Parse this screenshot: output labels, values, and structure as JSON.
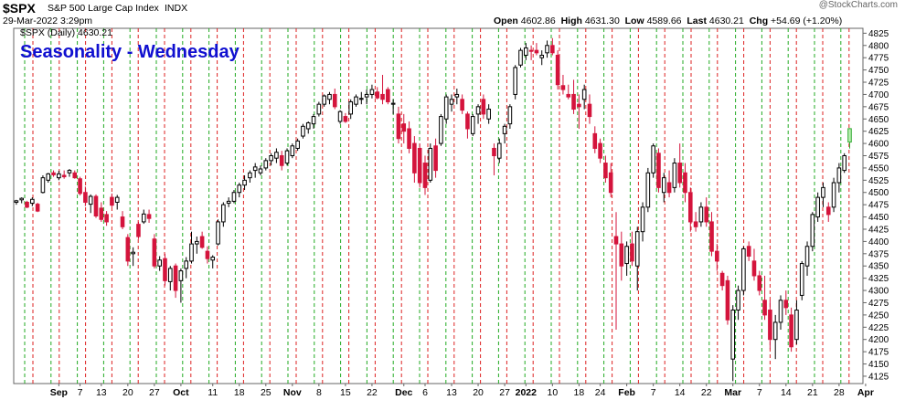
{
  "header": {
    "symbol": "$SPX",
    "name": "S&P 500 Large Cap Index",
    "exchange": "INDX",
    "datetime": "29-Mar-2022 3:29pm",
    "open_label": "Open",
    "open": "4602.86",
    "high_label": "High",
    "high": "4631.30",
    "low_label": "Low",
    "low": "4589.66",
    "last_label": "Last",
    "last": "4630.21",
    "chg_label": "Chg",
    "chg": "+54.69 (+1.20%)",
    "watermark": "@StockCharts.com",
    "series_label": "$SPX (Daily) 4630.21"
  },
  "overlay_title": "Seasonality - Wednesday",
  "chart_data": {
    "type": "candlestick",
    "ylim": [
      4110,
      4835
    ],
    "y_ticks": [
      4125,
      4150,
      4175,
      4200,
      4225,
      4250,
      4275,
      4300,
      4325,
      4350,
      4375,
      4400,
      4425,
      4450,
      4475,
      4500,
      4525,
      4550,
      4575,
      4600,
      4625,
      4650,
      4675,
      4700,
      4725,
      4750,
      4775,
      4800,
      4825
    ],
    "x_tick_labels": [
      {
        "label": "Sep",
        "i": 8,
        "bold": true
      },
      {
        "label": "7",
        "i": 12
      },
      {
        "label": "13",
        "i": 16
      },
      {
        "label": "20",
        "i": 21
      },
      {
        "label": "27",
        "i": 26
      },
      {
        "label": "Oct",
        "i": 31,
        "bold": true
      },
      {
        "label": "11",
        "i": 37
      },
      {
        "label": "18",
        "i": 42
      },
      {
        "label": "25",
        "i": 47
      },
      {
        "label": "Nov",
        "i": 52,
        "bold": true
      },
      {
        "label": "8",
        "i": 57
      },
      {
        "label": "15",
        "i": 62
      },
      {
        "label": "22",
        "i": 67
      },
      {
        "label": "Dec",
        "i": 73,
        "bold": true
      },
      {
        "label": "6",
        "i": 77
      },
      {
        "label": "13",
        "i": 82
      },
      {
        "label": "20",
        "i": 87
      },
      {
        "label": "27",
        "i": 92
      },
      {
        "label": "2022",
        "i": 96,
        "bold": true
      },
      {
        "label": "10",
        "i": 101
      },
      {
        "label": "18",
        "i": 106
      },
      {
        "label": "24",
        "i": 110
      },
      {
        "label": "Feb",
        "i": 115,
        "bold": true
      },
      {
        "label": "7",
        "i": 120
      },
      {
        "label": "14",
        "i": 125
      },
      {
        "label": "22",
        "i": 130
      },
      {
        "label": "Mar",
        "i": 135,
        "bold": true
      },
      {
        "label": "7",
        "i": 140
      },
      {
        "label": "14",
        "i": 145
      },
      {
        "label": "21",
        "i": 150
      },
      {
        "label": "28",
        "i": 155
      },
      {
        "label": "Apr",
        "i": 160,
        "bold": true
      }
    ],
    "weekday_line_colors": {
      "monday": "#22aa22",
      "wednesday": "#dd2222"
    },
    "candles": [
      [
        4480,
        4485,
        4475,
        4483
      ],
      [
        4485,
        4490,
        4478,
        4488
      ],
      [
        4480,
        4483,
        4468,
        4470
      ],
      [
        4478,
        4490,
        4472,
        4486
      ],
      [
        4476,
        4479,
        4460,
        4462
      ],
      [
        4500,
        4535,
        4498,
        4530
      ],
      [
        4525,
        4540,
        4520,
        4538
      ],
      [
        4540,
        4545,
        4532,
        4536
      ],
      [
        4530,
        4544,
        4525,
        4538
      ],
      [
        4535,
        4545,
        4528,
        4532
      ],
      [
        4540,
        4548,
        4532,
        4545
      ],
      [
        4540,
        4545,
        4528,
        4530
      ],
      [
        4528,
        4532,
        4494,
        4498
      ],
      [
        4500,
        4512,
        4472,
        4480
      ],
      [
        4476,
        4496,
        4458,
        4492
      ],
      [
        4492,
        4496,
        4448,
        4452
      ],
      [
        4468,
        4480,
        4440,
        4445
      ],
      [
        4455,
        4462,
        4432,
        4440
      ],
      [
        4490,
        4498,
        4470,
        4474
      ],
      [
        4480,
        4495,
        4465,
        4490
      ],
      [
        4450,
        4462,
        4425,
        4430
      ],
      [
        4408,
        4415,
        4350,
        4360
      ],
      [
        4375,
        4388,
        4350,
        4378
      ],
      [
        4435,
        4440,
        4405,
        4410
      ],
      [
        4440,
        4465,
        4436,
        4456
      ],
      [
        4455,
        4465,
        4438,
        4447
      ],
      [
        4405,
        4415,
        4345,
        4350
      ],
      [
        4350,
        4370,
        4340,
        4362
      ],
      [
        4365,
        4375,
        4310,
        4320
      ],
      [
        4318,
        4350,
        4300,
        4345
      ],
      [
        4350,
        4355,
        4285,
        4300
      ],
      [
        4320,
        4345,
        4275,
        4340
      ],
      [
        4345,
        4368,
        4325,
        4360
      ],
      [
        4360,
        4420,
        4355,
        4395
      ],
      [
        4395,
        4410,
        4375,
        4400
      ],
      [
        4410,
        4420,
        4385,
        4388
      ],
      [
        4380,
        4390,
        4355,
        4365
      ],
      [
        4362,
        4372,
        4345,
        4368
      ],
      [
        4395,
        4445,
        4392,
        4440
      ],
      [
        4440,
        4480,
        4430,
        4475
      ],
      [
        4478,
        4490,
        4470,
        4482
      ],
      [
        4482,
        4505,
        4478,
        4500
      ],
      [
        4500,
        4520,
        4490,
        4515
      ],
      [
        4515,
        4535,
        4505,
        4525
      ],
      [
        4530,
        4545,
        4520,
        4540
      ],
      [
        4545,
        4560,
        4530,
        4552
      ],
      [
        4540,
        4555,
        4535,
        4548
      ],
      [
        4550,
        4570,
        4545,
        4565
      ],
      [
        4565,
        4580,
        4555,
        4575
      ],
      [
        4570,
        4590,
        4560,
        4582
      ],
      [
        4575,
        4585,
        4545,
        4555
      ],
      [
        4560,
        4590,
        4555,
        4585
      ],
      [
        4575,
        4600,
        4570,
        4595
      ],
      [
        4590,
        4610,
        4585,
        4605
      ],
      [
        4615,
        4640,
        4610,
        4635
      ],
      [
        4630,
        4645,
        4620,
        4642
      ],
      [
        4640,
        4660,
        4630,
        4655
      ],
      [
        4660,
        4685,
        4655,
        4680
      ],
      [
        4680,
        4700,
        4675,
        4697
      ],
      [
        4690,
        4705,
        4680,
        4700
      ],
      [
        4700,
        4712,
        4670,
        4675
      ],
      [
        4645,
        4668,
        4640,
        4665
      ],
      [
        4655,
        4662,
        4642,
        4645
      ],
      [
        4660,
        4690,
        4650,
        4685
      ],
      [
        4680,
        4700,
        4675,
        4695
      ],
      [
        4690,
        4705,
        4680,
        4692
      ],
      [
        4695,
        4710,
        4680,
        4700
      ],
      [
        4700,
        4720,
        4692,
        4710
      ],
      [
        4705,
        4715,
        4690,
        4693
      ],
      [
        4700,
        4740,
        4680,
        4690
      ],
      [
        4710,
        4715,
        4680,
        4685
      ],
      [
        4680,
        4690,
        4660,
        4682
      ],
      [
        4660,
        4675,
        4600,
        4610
      ],
      [
        4640,
        4660,
        4600,
        4625
      ],
      [
        4630,
        4645,
        4580,
        4590
      ],
      [
        4600,
        4615,
        4520,
        4540
      ],
      [
        4590,
        4600,
        4510,
        4520
      ],
      [
        4560,
        4575,
        4495,
        4510
      ],
      [
        4525,
        4600,
        4520,
        4590
      ],
      [
        4595,
        4610,
        4530,
        4545
      ],
      [
        4600,
        4660,
        4595,
        4655
      ],
      [
        4650,
        4700,
        4640,
        4695
      ],
      [
        4680,
        4700,
        4665,
        4690
      ],
      [
        4695,
        4712,
        4680,
        4700
      ],
      [
        4690,
        4700,
        4660,
        4668
      ],
      [
        4660,
        4665,
        4610,
        4630
      ],
      [
        4620,
        4660,
        4615,
        4655
      ],
      [
        4660,
        4680,
        4640,
        4675
      ],
      [
        4690,
        4700,
        4650,
        4660
      ],
      [
        4650,
        4680,
        4640,
        4670
      ],
      [
        4590,
        4600,
        4535,
        4575
      ],
      [
        4570,
        4610,
        4560,
        4600
      ],
      [
        4620,
        4640,
        4600,
        4635
      ],
      [
        4640,
        4680,
        4630,
        4675
      ],
      [
        4700,
        4760,
        4690,
        4755
      ],
      [
        4760,
        4795,
        4755,
        4790
      ],
      [
        4780,
        4805,
        4770,
        4795
      ],
      [
        4790,
        4800,
        4770,
        4788
      ],
      [
        4790,
        4805,
        4780,
        4785
      ],
      [
        4775,
        4790,
        4760,
        4780
      ],
      [
        4785,
        4810,
        4775,
        4800
      ],
      [
        4800,
        4815,
        4780,
        4785
      ],
      [
        4780,
        4790,
        4710,
        4720
      ],
      [
        4718,
        4740,
        4700,
        4710
      ],
      [
        4700,
        4720,
        4690,
        4695
      ],
      [
        4700,
        4730,
        4660,
        4670
      ],
      [
        4680,
        4700,
        4630,
        4675
      ],
      [
        4690,
        4720,
        4670,
        4710
      ],
      [
        4680,
        4700,
        4640,
        4655
      ],
      [
        4620,
        4635,
        4580,
        4590
      ],
      [
        4600,
        4610,
        4560,
        4570
      ],
      [
        4560,
        4575,
        4520,
        4530
      ],
      [
        4540,
        4560,
        4490,
        4500
      ],
      [
        4410,
        4460,
        4220,
        4395
      ],
      [
        4395,
        4420,
        4320,
        4350
      ],
      [
        4355,
        4400,
        4330,
        4390
      ],
      [
        4395,
        4420,
        4350,
        4360
      ],
      [
        4350,
        4430,
        4300,
        4420
      ],
      [
        4420,
        4480,
        4400,
        4470
      ],
      [
        4470,
        4550,
        4460,
        4540
      ],
      [
        4540,
        4600,
        4530,
        4595
      ],
      [
        4580,
        4590,
        4500,
        4510
      ],
      [
        4500,
        4540,
        4480,
        4530
      ],
      [
        4520,
        4545,
        4490,
        4500
      ],
      [
        4510,
        4570,
        4500,
        4560
      ],
      [
        4560,
        4600,
        4510,
        4520
      ],
      [
        4540,
        4560,
        4480,
        4500
      ],
      [
        4500,
        4510,
        4420,
        4440
      ],
      [
        4440,
        4460,
        4420,
        4430
      ],
      [
        4440,
        4480,
        4430,
        4470
      ],
      [
        4470,
        4490,
        4430,
        4440
      ],
      [
        4440,
        4460,
        4370,
        4380
      ],
      [
        4380,
        4395,
        4340,
        4360
      ],
      [
        4335,
        4340,
        4300,
        4310
      ],
      [
        4320,
        4330,
        4230,
        4240
      ],
      [
        4160,
        4270,
        4115,
        4260
      ],
      [
        4260,
        4310,
        4240,
        4300
      ],
      [
        4300,
        4390,
        4290,
        4385
      ],
      [
        4390,
        4400,
        4360,
        4370
      ],
      [
        4360,
        4385,
        4320,
        4330
      ],
      [
        4330,
        4340,
        4290,
        4300
      ],
      [
        4280,
        4330,
        4240,
        4250
      ],
      [
        4260,
        4280,
        4180,
        4200
      ],
      [
        4200,
        4250,
        4160,
        4235
      ],
      [
        4235,
        4290,
        4220,
        4280
      ],
      [
        4280,
        4300,
        4250,
        4265
      ],
      [
        4250,
        4265,
        4175,
        4185
      ],
      [
        4200,
        4280,
        4190,
        4260
      ],
      [
        4290,
        4360,
        4280,
        4355
      ],
      [
        4350,
        4400,
        4330,
        4390
      ],
      [
        4390,
        4460,
        4380,
        4455
      ],
      [
        4450,
        4500,
        4440,
        4490
      ],
      [
        4490,
        4520,
        4470,
        4510
      ],
      [
        4470,
        4480,
        4440,
        4455
      ],
      [
        4470,
        4530,
        4460,
        4520
      ],
      [
        4520,
        4560,
        4500,
        4550
      ],
      [
        4545,
        4580,
        4540,
        4575
      ],
      [
        4602.86,
        4631.3,
        4589.66,
        4630.21
      ]
    ]
  }
}
